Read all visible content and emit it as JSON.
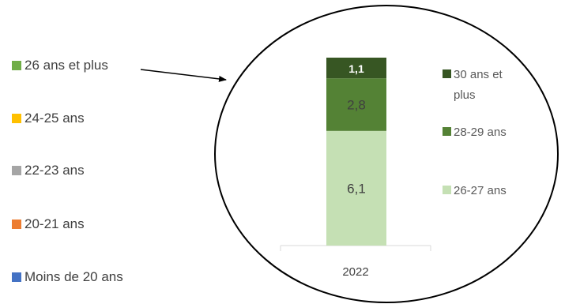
{
  "left_legend": [
    {
      "label": "26 ans et plus",
      "color": "#70ad47"
    },
    {
      "label": "24-25 ans",
      "color": "#ffc000"
    },
    {
      "label": "22-23 ans",
      "color": "#a5a5a5"
    },
    {
      "label": "20-21 ans",
      "color": "#ed7d31"
    },
    {
      "label": "Moins de 20 ans",
      "color": "#4472c4"
    }
  ],
  "chart_data": {
    "type": "bar",
    "stacked": true,
    "categories": [
      "2022"
    ],
    "series": [
      {
        "name": "26-27 ans",
        "values": [
          6.1
        ],
        "label": "6,1",
        "color": "#c5e0b4"
      },
      {
        "name": "28-29 ans",
        "values": [
          2.8
        ],
        "label": "2,8",
        "color": "#548235"
      },
      {
        "name": "30 ans et plus",
        "values": [
          1.1
        ],
        "label": "1,1",
        "color": "#375623"
      }
    ],
    "legend_labels": {
      "s30": [
        "30 ans et",
        "plus"
      ],
      "s28": "28-29 ans",
      "s26": "26-27 ans"
    },
    "title": "",
    "xlabel": "",
    "ylabel": "",
    "grid": false,
    "legend_position": "right"
  }
}
